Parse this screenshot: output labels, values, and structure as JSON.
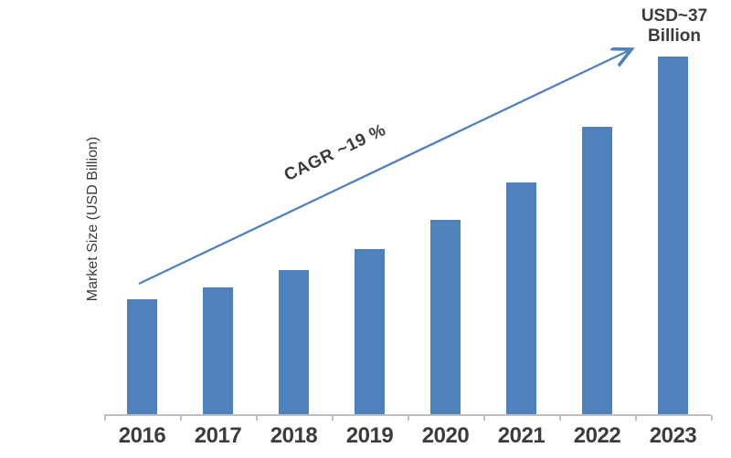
{
  "chart_data": {
    "type": "bar",
    "title": "",
    "categories": [
      "2016",
      "2017",
      "2018",
      "2019",
      "2020",
      "2021",
      "2022",
      "2023"
    ],
    "values": [
      12.0,
      13.2,
      15.0,
      17.1,
      20.1,
      24.0,
      29.7,
      37.0
    ],
    "xlabel": "",
    "ylabel": "Market Size (USD Billion)",
    "ylim": [
      0,
      40
    ],
    "grid": false,
    "legend": "none",
    "y_axis_ticks_visible": false,
    "bar_color": "#4F81BD",
    "arrow_color": "#5180BE",
    "axis_color": "#BFBFBF",
    "text_color": "#3C3C3C",
    "annotations": {
      "cagr_label": "CAGR ~19 %",
      "end_value_line1": "USD~37",
      "end_value_line2": "Billion"
    }
  }
}
